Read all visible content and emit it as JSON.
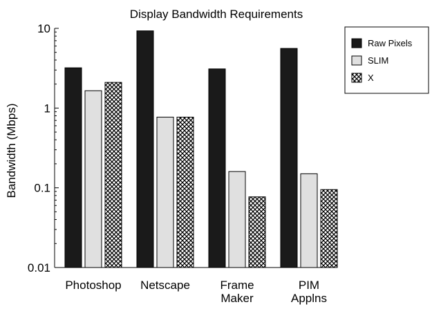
{
  "chart_data": {
    "type": "bar",
    "title": "Display Bandwidth Requirements",
    "xlabel": "",
    "ylabel": "Bandwidth (Mbps)",
    "yscale": "log",
    "ylim": [
      0.01,
      10
    ],
    "yticks": [
      {
        "value": 0.01,
        "label": "0.01"
      },
      {
        "value": 0.1,
        "label": "0.1"
      },
      {
        "value": 1,
        "label": "1"
      },
      {
        "value": 10,
        "label": "10"
      }
    ],
    "grid": false,
    "legend_position": "top-right",
    "categories": [
      [
        "Photoshop"
      ],
      [
        "Netscape"
      ],
      [
        "Frame",
        "Maker"
      ],
      [
        "PIM",
        "Applns"
      ]
    ],
    "series": [
      {
        "name": "Raw Pixels",
        "style": "solid-black",
        "values": [
          3.2,
          9.3,
          3.1,
          5.6
        ]
      },
      {
        "name": "SLIM",
        "style": "light-gray",
        "values": [
          1.65,
          0.77,
          0.16,
          0.15
        ]
      },
      {
        "name": "X",
        "style": "crosshatch",
        "values": [
          2.1,
          0.77,
          0.077,
          0.095
        ]
      }
    ],
    "colors": {
      "raw_pixels": "#1a1a1a",
      "slim": "#e0e0e0",
      "axis": "#000000"
    }
  }
}
